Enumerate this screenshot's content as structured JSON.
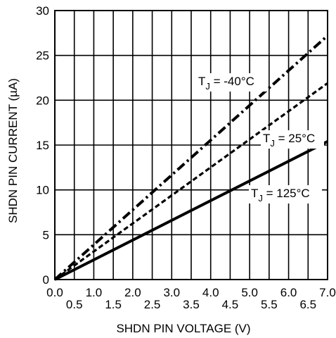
{
  "chart_data": {
    "type": "line",
    "xlabel": "SHDN PIN VOLTAGE (V)",
    "ylabel": "SHDN PIN CURRENT (µA)",
    "xlim": [
      0,
      7
    ],
    "ylim": [
      0,
      30
    ],
    "grid": true,
    "x_ticks_upper": [
      "0.0",
      "1.0",
      "2.0",
      "3.0",
      "4.0",
      "5.0",
      "6.0",
      "7.0"
    ],
    "x_ticks_lower": [
      "0.5",
      "1.5",
      "2.5",
      "3.5",
      "4.5",
      "5.5",
      "6.5"
    ],
    "y_ticks": [
      "0",
      "5",
      "10",
      "15",
      "20",
      "25",
      "30"
    ],
    "series": [
      {
        "name": "T_J = -40°C",
        "label_main": "T",
        "label_sub": "J",
        "label_rest": " = -40°C",
        "style": "dashdot",
        "x": [
          0,
          7
        ],
        "y": [
          0,
          27.2
        ]
      },
      {
        "name": "T_J = 25°C",
        "label_main": "T",
        "label_sub": "J",
        "label_rest": " = 25°C",
        "style": "dotted",
        "x": [
          0,
          7
        ],
        "y": [
          0,
          21.9
        ]
      },
      {
        "name": "T_J = 125°C",
        "label_main": "T",
        "label_sub": "J",
        "label_rest": " = 125°C",
        "style": "solid",
        "x": [
          0,
          7
        ],
        "y": [
          0,
          15.4
        ]
      }
    ]
  }
}
